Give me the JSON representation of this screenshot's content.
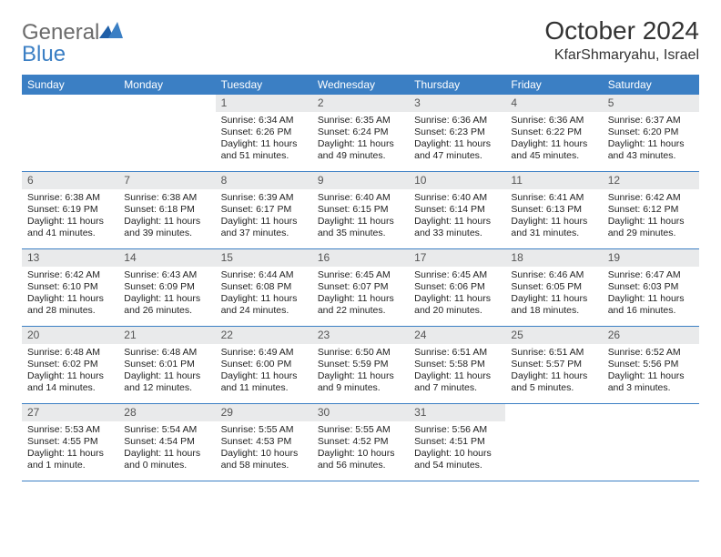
{
  "brand": {
    "text_general": "General",
    "text_blue": "Blue",
    "general_color": "#6b6b6b",
    "blue_color": "#3b7fc4"
  },
  "title": "October 2024",
  "location": "KfarShmaryahu, Israel",
  "colors": {
    "header_bg": "#3b7fc4",
    "header_text": "#ffffff",
    "daynum_bg": "#e9eaeb",
    "daynum_text": "#555555",
    "body_text": "#222222",
    "rule": "#3b7fc4",
    "page_bg": "#ffffff"
  },
  "typography": {
    "title_fontsize": 28,
    "location_fontsize": 16,
    "dayhead_fontsize": 12,
    "cell_fontsize": 10.5
  },
  "day_headers": [
    "Sunday",
    "Monday",
    "Tuesday",
    "Wednesday",
    "Thursday",
    "Friday",
    "Saturday"
  ],
  "weeks": [
    [
      {
        "blank": true
      },
      {
        "blank": true
      },
      {
        "num": "1",
        "sunrise": "Sunrise: 6:34 AM",
        "sunset": "Sunset: 6:26 PM",
        "day1": "Daylight: 11 hours",
        "day2": "and 51 minutes."
      },
      {
        "num": "2",
        "sunrise": "Sunrise: 6:35 AM",
        "sunset": "Sunset: 6:24 PM",
        "day1": "Daylight: 11 hours",
        "day2": "and 49 minutes."
      },
      {
        "num": "3",
        "sunrise": "Sunrise: 6:36 AM",
        "sunset": "Sunset: 6:23 PM",
        "day1": "Daylight: 11 hours",
        "day2": "and 47 minutes."
      },
      {
        "num": "4",
        "sunrise": "Sunrise: 6:36 AM",
        "sunset": "Sunset: 6:22 PM",
        "day1": "Daylight: 11 hours",
        "day2": "and 45 minutes."
      },
      {
        "num": "5",
        "sunrise": "Sunrise: 6:37 AM",
        "sunset": "Sunset: 6:20 PM",
        "day1": "Daylight: 11 hours",
        "day2": "and 43 minutes."
      }
    ],
    [
      {
        "num": "6",
        "sunrise": "Sunrise: 6:38 AM",
        "sunset": "Sunset: 6:19 PM",
        "day1": "Daylight: 11 hours",
        "day2": "and 41 minutes."
      },
      {
        "num": "7",
        "sunrise": "Sunrise: 6:38 AM",
        "sunset": "Sunset: 6:18 PM",
        "day1": "Daylight: 11 hours",
        "day2": "and 39 minutes."
      },
      {
        "num": "8",
        "sunrise": "Sunrise: 6:39 AM",
        "sunset": "Sunset: 6:17 PM",
        "day1": "Daylight: 11 hours",
        "day2": "and 37 minutes."
      },
      {
        "num": "9",
        "sunrise": "Sunrise: 6:40 AM",
        "sunset": "Sunset: 6:15 PM",
        "day1": "Daylight: 11 hours",
        "day2": "and 35 minutes."
      },
      {
        "num": "10",
        "sunrise": "Sunrise: 6:40 AM",
        "sunset": "Sunset: 6:14 PM",
        "day1": "Daylight: 11 hours",
        "day2": "and 33 minutes."
      },
      {
        "num": "11",
        "sunrise": "Sunrise: 6:41 AM",
        "sunset": "Sunset: 6:13 PM",
        "day1": "Daylight: 11 hours",
        "day2": "and 31 minutes."
      },
      {
        "num": "12",
        "sunrise": "Sunrise: 6:42 AM",
        "sunset": "Sunset: 6:12 PM",
        "day1": "Daylight: 11 hours",
        "day2": "and 29 minutes."
      }
    ],
    [
      {
        "num": "13",
        "sunrise": "Sunrise: 6:42 AM",
        "sunset": "Sunset: 6:10 PM",
        "day1": "Daylight: 11 hours",
        "day2": "and 28 minutes."
      },
      {
        "num": "14",
        "sunrise": "Sunrise: 6:43 AM",
        "sunset": "Sunset: 6:09 PM",
        "day1": "Daylight: 11 hours",
        "day2": "and 26 minutes."
      },
      {
        "num": "15",
        "sunrise": "Sunrise: 6:44 AM",
        "sunset": "Sunset: 6:08 PM",
        "day1": "Daylight: 11 hours",
        "day2": "and 24 minutes."
      },
      {
        "num": "16",
        "sunrise": "Sunrise: 6:45 AM",
        "sunset": "Sunset: 6:07 PM",
        "day1": "Daylight: 11 hours",
        "day2": "and 22 minutes."
      },
      {
        "num": "17",
        "sunrise": "Sunrise: 6:45 AM",
        "sunset": "Sunset: 6:06 PM",
        "day1": "Daylight: 11 hours",
        "day2": "and 20 minutes."
      },
      {
        "num": "18",
        "sunrise": "Sunrise: 6:46 AM",
        "sunset": "Sunset: 6:05 PM",
        "day1": "Daylight: 11 hours",
        "day2": "and 18 minutes."
      },
      {
        "num": "19",
        "sunrise": "Sunrise: 6:47 AM",
        "sunset": "Sunset: 6:03 PM",
        "day1": "Daylight: 11 hours",
        "day2": "and 16 minutes."
      }
    ],
    [
      {
        "num": "20",
        "sunrise": "Sunrise: 6:48 AM",
        "sunset": "Sunset: 6:02 PM",
        "day1": "Daylight: 11 hours",
        "day2": "and 14 minutes."
      },
      {
        "num": "21",
        "sunrise": "Sunrise: 6:48 AM",
        "sunset": "Sunset: 6:01 PM",
        "day1": "Daylight: 11 hours",
        "day2": "and 12 minutes."
      },
      {
        "num": "22",
        "sunrise": "Sunrise: 6:49 AM",
        "sunset": "Sunset: 6:00 PM",
        "day1": "Daylight: 11 hours",
        "day2": "and 11 minutes."
      },
      {
        "num": "23",
        "sunrise": "Sunrise: 6:50 AM",
        "sunset": "Sunset: 5:59 PM",
        "day1": "Daylight: 11 hours",
        "day2": "and 9 minutes."
      },
      {
        "num": "24",
        "sunrise": "Sunrise: 6:51 AM",
        "sunset": "Sunset: 5:58 PM",
        "day1": "Daylight: 11 hours",
        "day2": "and 7 minutes."
      },
      {
        "num": "25",
        "sunrise": "Sunrise: 6:51 AM",
        "sunset": "Sunset: 5:57 PM",
        "day1": "Daylight: 11 hours",
        "day2": "and 5 minutes."
      },
      {
        "num": "26",
        "sunrise": "Sunrise: 6:52 AM",
        "sunset": "Sunset: 5:56 PM",
        "day1": "Daylight: 11 hours",
        "day2": "and 3 minutes."
      }
    ],
    [
      {
        "num": "27",
        "sunrise": "Sunrise: 5:53 AM",
        "sunset": "Sunset: 4:55 PM",
        "day1": "Daylight: 11 hours",
        "day2": "and 1 minute."
      },
      {
        "num": "28",
        "sunrise": "Sunrise: 5:54 AM",
        "sunset": "Sunset: 4:54 PM",
        "day1": "Daylight: 11 hours",
        "day2": "and 0 minutes."
      },
      {
        "num": "29",
        "sunrise": "Sunrise: 5:55 AM",
        "sunset": "Sunset: 4:53 PM",
        "day1": "Daylight: 10 hours",
        "day2": "and 58 minutes."
      },
      {
        "num": "30",
        "sunrise": "Sunrise: 5:55 AM",
        "sunset": "Sunset: 4:52 PM",
        "day1": "Daylight: 10 hours",
        "day2": "and 56 minutes."
      },
      {
        "num": "31",
        "sunrise": "Sunrise: 5:56 AM",
        "sunset": "Sunset: 4:51 PM",
        "day1": "Daylight: 10 hours",
        "day2": "and 54 minutes."
      },
      {
        "blank": true
      },
      {
        "blank": true
      }
    ]
  ]
}
